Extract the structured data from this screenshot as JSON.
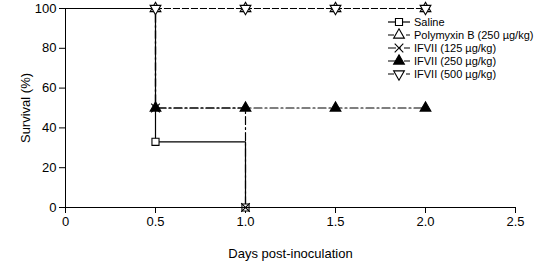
{
  "chart_data": {
    "type": "line",
    "x_label": "Days post-inoculation",
    "y_label": "Survival (%)",
    "x": [
      0,
      0.5,
      1.0,
      1.5,
      2.0
    ],
    "series": [
      {
        "name": "Saline",
        "color": "#000000",
        "marker": "square",
        "line_style": "solid",
        "values": [
          100,
          33,
          0,
          null,
          null
        ]
      },
      {
        "name": "Polymyxin B (250 µg/kg)",
        "color": "#000000",
        "marker": "triangle",
        "line_style": "dashed",
        "values": [
          100,
          100,
          100,
          100,
          100
        ]
      },
      {
        "name": "IFVII (125 µg/kg)",
        "color": "#000000",
        "marker": "x",
        "line_style": "dash-dot",
        "values": [
          100,
          50,
          0,
          null,
          null
        ]
      },
      {
        "name": "IFVII (250 µg/kg)",
        "color": "#000000",
        "marker": "filled-triangle",
        "line_style": "dash-dot",
        "values": [
          100,
          50,
          50,
          50,
          50
        ]
      },
      {
        "name": "IFVII (500 µg/kg)",
        "color": "#000000",
        "marker": "inverted-triangle",
        "line_style": "dashed",
        "values": [
          100,
          100,
          100,
          100,
          100
        ]
      }
    ],
    "xlim": [
      0,
      2.5
    ],
    "xticks": [
      0,
      0.5,
      {
        "value": 1,
        "label": "1.0"
      },
      1.5,
      {
        "value": 2,
        "label": "2.0"
      },
      2.5
    ],
    "ylim": [
      0,
      100
    ],
    "yticks": [
      0,
      20,
      40,
      60,
      80,
      100
    ],
    "grid": false,
    "legend": "top-right"
  }
}
